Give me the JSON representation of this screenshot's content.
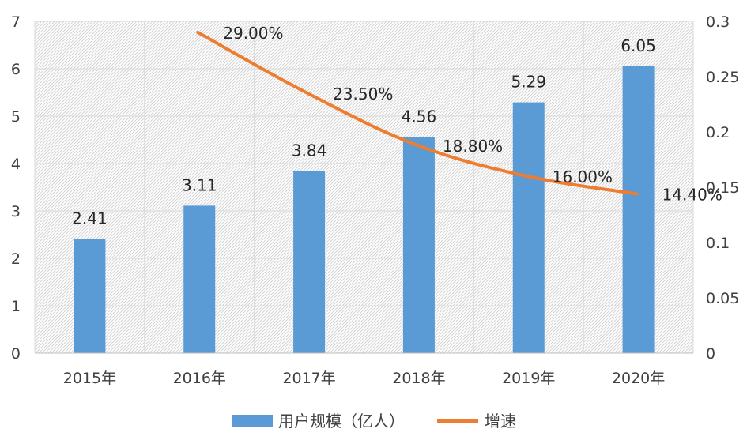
{
  "chart_data": {
    "type": "bar",
    "categories": [
      "2015年",
      "2016年",
      "2017年",
      "2018年",
      "2019年",
      "2020年"
    ],
    "series": [
      {
        "name": "用户规模（亿人）",
        "type": "bar",
        "axis": "left",
        "values": [
          2.41,
          3.11,
          3.84,
          4.56,
          5.29,
          6.05
        ],
        "labels": [
          "2.41",
          "3.11",
          "3.84",
          "4.56",
          "5.29",
          "6.05"
        ],
        "color": "#5B9BD5"
      },
      {
        "name": "增速",
        "type": "line",
        "axis": "right",
        "values": [
          null,
          0.29,
          0.235,
          0.188,
          0.16,
          0.144
        ],
        "labels": [
          "",
          "29.00%",
          "23.50%",
          "18.80%",
          "16.00%",
          "14.40%"
        ],
        "color": "#ED7D31"
      }
    ],
    "y_left": {
      "ylim": [
        0,
        7
      ],
      "ticks": [
        "0",
        "1",
        "2",
        "3",
        "4",
        "5",
        "6",
        "7"
      ]
    },
    "y_right": {
      "ylim": [
        0,
        0.3
      ],
      "ticks": [
        "0",
        "0.05",
        "0.1",
        "0.15",
        "0.2",
        "0.25",
        "0.3"
      ]
    },
    "grid": true,
    "legend_position": "bottom",
    "title": "",
    "xlabel": "",
    "ylabel": ""
  }
}
